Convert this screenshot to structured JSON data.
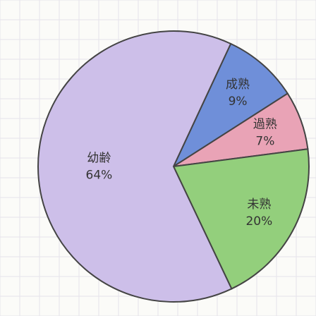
{
  "chart_data": {
    "type": "pie",
    "categories": [
      "幼齢",
      "成熟",
      "過熟",
      "未熟"
    ],
    "values": [
      64,
      9,
      7,
      20
    ],
    "value_labels": [
      "64%",
      "9%",
      "7%",
      "20%"
    ],
    "colors": [
      "#cdbfe9",
      "#6f8fd9",
      "#e9a3b6",
      "#93cf7c"
    ]
  }
}
